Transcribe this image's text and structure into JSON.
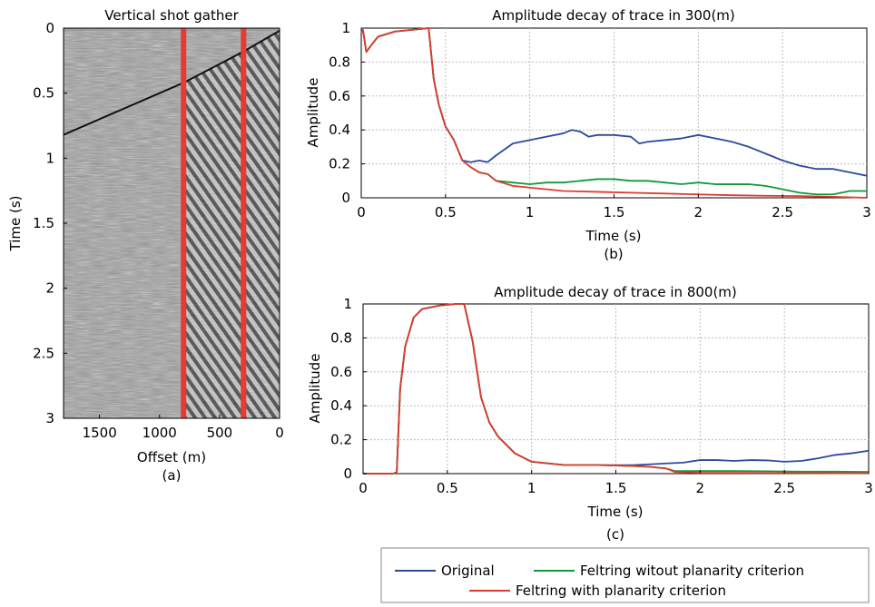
{
  "colors": {
    "original": "#2a4a9e",
    "no_planarity": "#0f9a3a",
    "with_planarity": "#e03a2f",
    "marker": "#e53a35"
  },
  "legend": {
    "original": "Original",
    "no_planarity": "Feltring witout planarity criterion",
    "with_planarity": "Feltring with planarity criterion"
  },
  "chart_data": [
    {
      "type": "heatmap",
      "title": "Vertical shot gather",
      "xlabel": "Offset (m)",
      "ylabel": "Time (s)",
      "caption": "(a)",
      "xlim": [
        1800,
        0
      ],
      "ylim": [
        3,
        0
      ],
      "xticks": [
        "1500",
        "1000",
        "500",
        "0"
      ],
      "xtick_values": [
        1500,
        1000,
        500,
        0
      ],
      "yticks": [
        "0",
        "0.5",
        "1",
        "1.5",
        "2",
        "2.5",
        "3"
      ],
      "ytick_values": [
        0,
        0.5,
        1,
        1.5,
        2,
        2.5,
        3
      ],
      "first_break": {
        "offset": [
          0,
          300,
          800,
          1800
        ],
        "time": [
          0.02,
          0.18,
          0.42,
          0.82
        ]
      },
      "marked_traces_offset_m": [
        800,
        300
      ]
    },
    {
      "type": "line",
      "title": "Amplitude decay of trace in 300(m)",
      "xlabel": "Time (s)",
      "ylabel": "Amplitude",
      "caption": "(b)",
      "xlim": [
        0,
        3
      ],
      "ylim": [
        0,
        1
      ],
      "xticks": [
        "0",
        "0.5",
        "1",
        "1.5",
        "2",
        "2.5",
        "3"
      ],
      "xtick_values": [
        0,
        0.5,
        1,
        1.5,
        2,
        2.5,
        3
      ],
      "yticks": [
        "0",
        "0.2",
        "0.4",
        "0.6",
        "0.8",
        "1"
      ],
      "ytick_values": [
        0,
        0.2,
        0.4,
        0.6,
        0.8,
        1
      ],
      "grid": true,
      "series": [
        {
          "name": "Original",
          "key": "original",
          "x": [
            0,
            0.01,
            0.03,
            0.06,
            0.1,
            0.2,
            0.3,
            0.4,
            0.43,
            0.46,
            0.5,
            0.55,
            0.6,
            0.65,
            0.7,
            0.75,
            0.8,
            0.9,
            1.0,
            1.1,
            1.2,
            1.25,
            1.3,
            1.35,
            1.4,
            1.5,
            1.6,
            1.65,
            1.7,
            1.8,
            1.9,
            2.0,
            2.05,
            2.1,
            2.2,
            2.3,
            2.4,
            2.5,
            2.6,
            2.7,
            2.8,
            2.9,
            3.0
          ],
          "y": [
            0.97,
            0.99,
            0.86,
            0.9,
            0.95,
            0.98,
            0.99,
            1.0,
            0.7,
            0.55,
            0.42,
            0.34,
            0.22,
            0.21,
            0.22,
            0.21,
            0.25,
            0.32,
            0.34,
            0.36,
            0.38,
            0.4,
            0.39,
            0.36,
            0.37,
            0.37,
            0.36,
            0.32,
            0.33,
            0.34,
            0.35,
            0.37,
            0.36,
            0.35,
            0.33,
            0.3,
            0.26,
            0.22,
            0.19,
            0.17,
            0.17,
            0.15,
            0.13
          ]
        },
        {
          "name": "Feltring witout planarity criterion",
          "key": "no_planarity",
          "x": [
            0,
            0.01,
            0.03,
            0.06,
            0.1,
            0.2,
            0.3,
            0.4,
            0.43,
            0.46,
            0.5,
            0.55,
            0.6,
            0.65,
            0.7,
            0.75,
            0.8,
            0.9,
            1.0,
            1.1,
            1.2,
            1.3,
            1.4,
            1.5,
            1.6,
            1.7,
            1.8,
            1.9,
            2.0,
            2.1,
            2.2,
            2.3,
            2.4,
            2.5,
            2.6,
            2.7,
            2.8,
            2.9,
            3.0
          ],
          "y": [
            0.97,
            0.99,
            0.86,
            0.9,
            0.95,
            0.98,
            0.99,
            1.0,
            0.7,
            0.55,
            0.42,
            0.34,
            0.22,
            0.18,
            0.15,
            0.14,
            0.1,
            0.09,
            0.08,
            0.09,
            0.09,
            0.1,
            0.11,
            0.11,
            0.1,
            0.1,
            0.09,
            0.08,
            0.09,
            0.08,
            0.08,
            0.08,
            0.07,
            0.05,
            0.03,
            0.02,
            0.02,
            0.04,
            0.04
          ]
        },
        {
          "name": "Feltring with planarity criterion",
          "key": "with_planarity",
          "x": [
            0,
            0.01,
            0.03,
            0.06,
            0.1,
            0.2,
            0.3,
            0.4,
            0.43,
            0.46,
            0.5,
            0.55,
            0.6,
            0.65,
            0.7,
            0.75,
            0.8,
            0.9,
            1.0,
            1.1,
            1.2,
            1.4,
            1.6,
            1.8,
            2.0,
            2.2,
            2.4,
            2.6,
            2.8,
            3.0
          ],
          "y": [
            0.97,
            0.99,
            0.86,
            0.9,
            0.95,
            0.98,
            0.99,
            1.0,
            0.7,
            0.55,
            0.42,
            0.34,
            0.22,
            0.18,
            0.15,
            0.14,
            0.1,
            0.07,
            0.06,
            0.05,
            0.04,
            0.035,
            0.03,
            0.025,
            0.02,
            0.015,
            0.012,
            0.01,
            0.006,
            0.0
          ]
        }
      ]
    },
    {
      "type": "line",
      "title": "Amplitude decay of trace in 800(m)",
      "xlabel": "Time (s)",
      "ylabel": "Amplitude",
      "caption": "(c)",
      "xlim": [
        0,
        3
      ],
      "ylim": [
        0,
        1
      ],
      "xticks": [
        "0",
        "0.5",
        "1",
        "1.5",
        "2",
        "2.5",
        "3"
      ],
      "xtick_values": [
        0,
        0.5,
        1,
        1.5,
        2,
        2.5,
        3
      ],
      "yticks": [
        "0",
        "0.2",
        "0.4",
        "0.6",
        "0.8",
        "1"
      ],
      "ytick_values": [
        0,
        0.2,
        0.4,
        0.6,
        0.8,
        1
      ],
      "grid": true,
      "series": [
        {
          "name": "Original",
          "key": "original",
          "x": [
            0,
            0.18,
            0.2,
            0.22,
            0.25,
            0.3,
            0.35,
            0.45,
            0.55,
            0.6,
            0.65,
            0.7,
            0.75,
            0.8,
            0.9,
            1.0,
            1.2,
            1.4,
            1.6,
            1.7,
            1.8,
            1.9,
            2.0,
            2.1,
            2.2,
            2.3,
            2.4,
            2.5,
            2.6,
            2.7,
            2.8,
            2.9,
            3.0
          ],
          "y": [
            0,
            0,
            0.01,
            0.5,
            0.75,
            0.92,
            0.97,
            0.99,
            1.0,
            1.0,
            0.78,
            0.45,
            0.3,
            0.22,
            0.12,
            0.07,
            0.05,
            0.05,
            0.05,
            0.055,
            0.06,
            0.065,
            0.08,
            0.08,
            0.075,
            0.08,
            0.078,
            0.07,
            0.075,
            0.09,
            0.11,
            0.12,
            0.135
          ]
        },
        {
          "name": "Feltring witout planarity criterion",
          "key": "no_planarity",
          "x": [
            0,
            0.18,
            0.2,
            0.22,
            0.25,
            0.3,
            0.35,
            0.45,
            0.55,
            0.6,
            0.65,
            0.7,
            0.75,
            0.8,
            0.9,
            1.0,
            1.2,
            1.4,
            1.6,
            1.7,
            1.8,
            1.85,
            2.0,
            2.2,
            2.4,
            2.6,
            2.8,
            3.0
          ],
          "y": [
            0,
            0,
            0.01,
            0.5,
            0.75,
            0.92,
            0.97,
            0.99,
            1.0,
            1.0,
            0.78,
            0.45,
            0.3,
            0.22,
            0.12,
            0.07,
            0.05,
            0.05,
            0.045,
            0.04,
            0.03,
            0.015,
            0.015,
            0.015,
            0.014,
            0.012,
            0.012,
            0.01
          ]
        },
        {
          "name": "Feltring with planarity criterion",
          "key": "with_planarity",
          "x": [
            0,
            0.18,
            0.2,
            0.22,
            0.25,
            0.3,
            0.35,
            0.45,
            0.55,
            0.6,
            0.65,
            0.7,
            0.75,
            0.8,
            0.9,
            1.0,
            1.2,
            1.4,
            1.6,
            1.7,
            1.8,
            1.85,
            2.0,
            2.4,
            2.8,
            3.0
          ],
          "y": [
            0,
            0,
            0.01,
            0.5,
            0.75,
            0.92,
            0.97,
            0.99,
            1.0,
            1.0,
            0.78,
            0.45,
            0.3,
            0.22,
            0.12,
            0.07,
            0.05,
            0.05,
            0.045,
            0.04,
            0.03,
            0.01,
            0.005,
            0.004,
            0.003,
            0.003
          ]
        }
      ]
    }
  ]
}
